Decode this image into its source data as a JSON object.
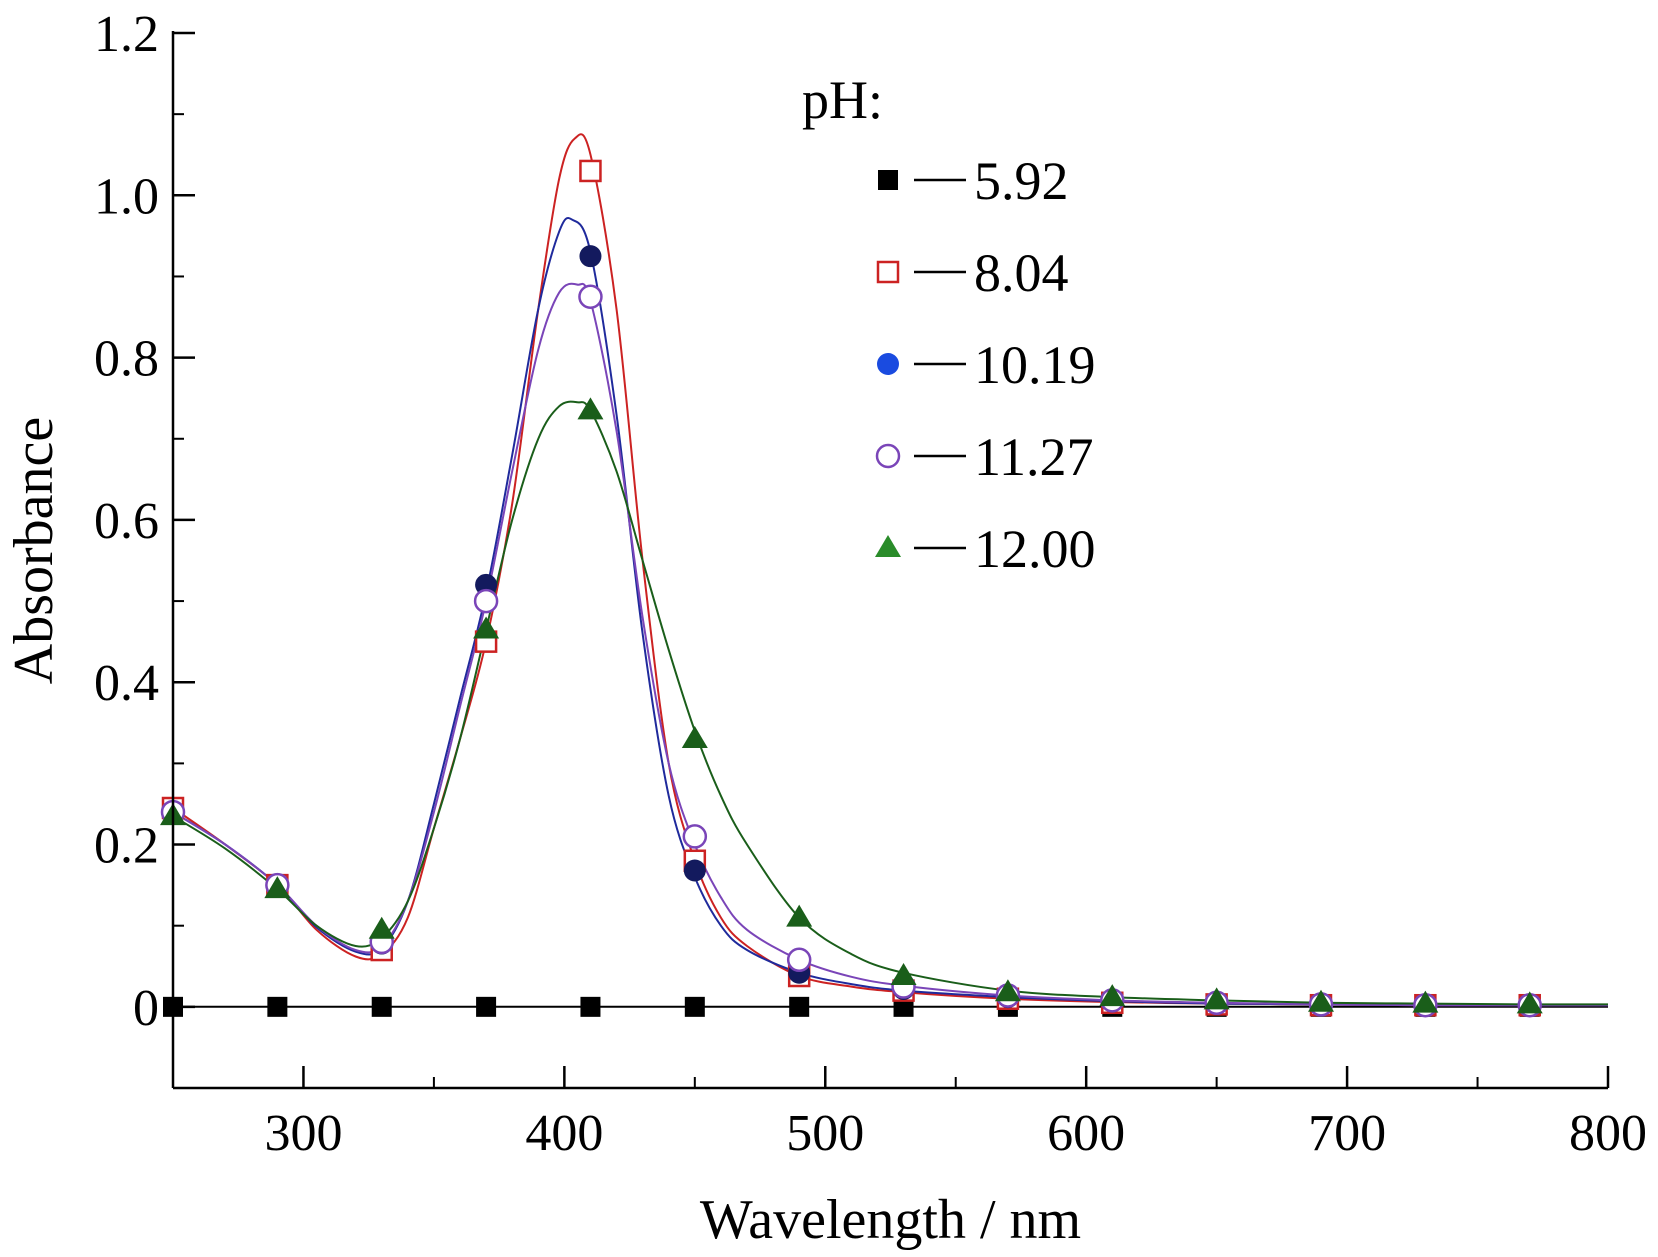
{
  "chart_data": {
    "type": "line",
    "xlabel": "Wavelength / nm",
    "ylabel": "Absorbance",
    "xlim": [
      250,
      800
    ],
    "ylim": [
      -0.1,
      1.2
    ],
    "x_ticks": [
      300,
      400,
      500,
      600,
      700,
      800
    ],
    "x_tick_labels": [
      "300",
      "400",
      "500",
      "600",
      "700",
      "800"
    ],
    "y_ticks": [
      0,
      0.2,
      0.4,
      0.6,
      0.8,
      1.0,
      1.2
    ],
    "y_tick_labels": [
      "0",
      "0.2",
      "0.4",
      "0.6",
      "0.8",
      "1.0",
      "1.2"
    ],
    "grid": false,
    "legend_title": "pH:",
    "legend_placement": "top-right",
    "series": [
      {
        "name": "5.92",
        "color": "#000000",
        "marker": "filled-square",
        "marker_color": "#000000",
        "marker_x": [
          250,
          290,
          330,
          370,
          410,
          450,
          490,
          530,
          570,
          610,
          650,
          690,
          730,
          770
        ],
        "marker_y": [
          0.0,
          0.0,
          0.0,
          0.0,
          0.0,
          0.0,
          0.0,
          0.0,
          0.0,
          0.0,
          0.0,
          0.0,
          0.0,
          0.0
        ],
        "curve_x": [
          250,
          800
        ],
        "curve_y": [
          0.0,
          0.0
        ]
      },
      {
        "name": "8.04",
        "color": "#cc2222",
        "marker": "open-square",
        "marker_color": "#cc2222",
        "marker_x": [
          250,
          290,
          330,
          370,
          410,
          450,
          490,
          530,
          570,
          610,
          650,
          690,
          730,
          770
        ],
        "marker_y": [
          0.245,
          0.15,
          0.07,
          0.45,
          1.03,
          0.18,
          0.038,
          0.02,
          0.01,
          0.005,
          0.003,
          0.002,
          0.002,
          0.002
        ],
        "curve_x": [
          250,
          270,
          290,
          305,
          320,
          330,
          340,
          350,
          360,
          370,
          380,
          390,
          398,
          404,
          410,
          420,
          430,
          440,
          450,
          460,
          470,
          490,
          510,
          530,
          570,
          610,
          650,
          690,
          730,
          770,
          800
        ],
        "curve_y": [
          0.245,
          0.2,
          0.15,
          0.095,
          0.062,
          0.065,
          0.11,
          0.22,
          0.33,
          0.45,
          0.62,
          0.86,
          1.02,
          1.07,
          1.05,
          0.86,
          0.55,
          0.3,
          0.18,
          0.11,
          0.075,
          0.038,
          0.025,
          0.018,
          0.01,
          0.006,
          0.004,
          0.003,
          0.002,
          0.002,
          0.002
        ]
      },
      {
        "name": "10.19",
        "color": "#1f2a9c",
        "marker": "filled-circle",
        "marker_color": "#131a5e",
        "legend_marker_color": "#1a4be0",
        "marker_x": [
          250,
          290,
          330,
          370,
          410,
          450,
          490,
          530,
          570,
          610,
          650,
          690,
          730,
          770
        ],
        "marker_y": [
          0.24,
          0.15,
          0.078,
          0.52,
          0.925,
          0.168,
          0.042,
          0.022,
          0.012,
          0.007,
          0.004,
          0.003,
          0.002,
          0.002
        ],
        "curve_x": [
          250,
          270,
          290,
          305,
          320,
          330,
          340,
          350,
          360,
          370,
          380,
          390,
          398,
          403,
          410,
          420,
          430,
          440,
          450,
          460,
          470,
          490,
          510,
          530,
          570,
          610,
          650,
          690,
          730,
          770,
          800
        ],
        "curve_y": [
          0.24,
          0.2,
          0.15,
          0.098,
          0.068,
          0.072,
          0.13,
          0.25,
          0.38,
          0.51,
          0.68,
          0.86,
          0.955,
          0.97,
          0.93,
          0.73,
          0.46,
          0.26,
          0.16,
          0.1,
          0.07,
          0.042,
          0.028,
          0.02,
          0.012,
          0.007,
          0.004,
          0.003,
          0.002,
          0.002,
          0.002
        ]
      },
      {
        "name": "11.27",
        "color": "#7a45b8",
        "marker": "open-circle",
        "marker_color": "#7a45b8",
        "marker_x": [
          250,
          290,
          330,
          370,
          410,
          450,
          490,
          530,
          570,
          610,
          650,
          690,
          730,
          770
        ],
        "marker_y": [
          0.24,
          0.15,
          0.08,
          0.5,
          0.875,
          0.21,
          0.058,
          0.025,
          0.014,
          0.008,
          0.005,
          0.003,
          0.002,
          0.002
        ],
        "curve_x": [
          250,
          270,
          290,
          305,
          320,
          330,
          340,
          350,
          360,
          370,
          380,
          390,
          398,
          405,
          410,
          420,
          430,
          440,
          450,
          460,
          470,
          490,
          510,
          530,
          570,
          610,
          650,
          690,
          730,
          770,
          800
        ],
        "curve_y": [
          0.24,
          0.2,
          0.15,
          0.1,
          0.07,
          0.075,
          0.13,
          0.24,
          0.37,
          0.5,
          0.66,
          0.81,
          0.88,
          0.89,
          0.87,
          0.71,
          0.48,
          0.3,
          0.2,
          0.135,
          0.095,
          0.058,
          0.037,
          0.026,
          0.014,
          0.008,
          0.005,
          0.003,
          0.002,
          0.002,
          0.002
        ]
      },
      {
        "name": "12.00",
        "color": "#1a5e1a",
        "marker": "filled-triangle",
        "marker_color": "#1a5e1a",
        "legend_marker_color": "#2a8c2a",
        "marker_x": [
          250,
          290,
          330,
          370,
          410,
          450,
          490,
          530,
          570,
          610,
          650,
          690,
          730,
          770
        ],
        "marker_y": [
          0.235,
          0.145,
          0.095,
          0.465,
          0.735,
          0.33,
          0.11,
          0.038,
          0.018,
          0.012,
          0.008,
          0.005,
          0.004,
          0.003
        ],
        "curve_x": [
          250,
          270,
          290,
          305,
          320,
          330,
          340,
          350,
          360,
          370,
          380,
          390,
          398,
          405,
          410,
          420,
          430,
          440,
          450,
          460,
          470,
          490,
          510,
          530,
          570,
          610,
          650,
          690,
          730,
          770,
          800
        ],
        "curve_y": [
          0.235,
          0.195,
          0.145,
          0.1,
          0.075,
          0.085,
          0.13,
          0.22,
          0.33,
          0.465,
          0.6,
          0.7,
          0.74,
          0.745,
          0.735,
          0.66,
          0.55,
          0.44,
          0.34,
          0.26,
          0.2,
          0.11,
          0.065,
          0.042,
          0.02,
          0.012,
          0.008,
          0.005,
          0.004,
          0.003,
          0.003
        ]
      }
    ]
  }
}
